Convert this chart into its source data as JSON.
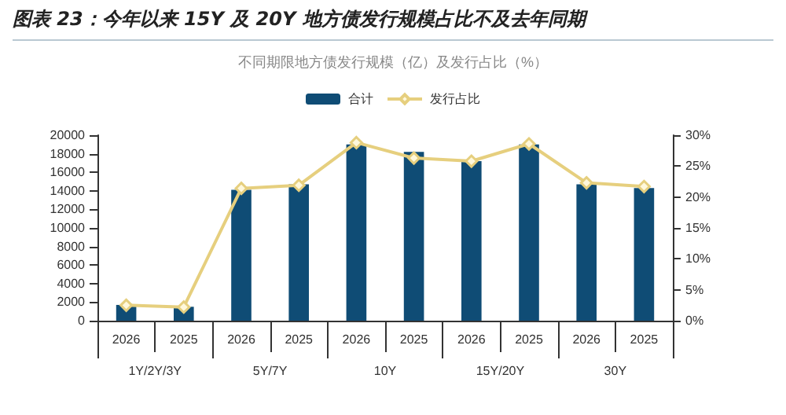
{
  "chart_data": {
    "type": "bar",
    "title": "图表 23：今年以来 15Y 及 20Y 地方债发行规模占比不及去年同期",
    "subtitle": "不同期限地方债发行规模（亿）及发行占比（%）",
    "categories": [
      "2026",
      "2025",
      "2026",
      "2025",
      "2026",
      "2025",
      "2026",
      "2025",
      "2026",
      "2025"
    ],
    "annotations": [
      "1Y/2Y/3Y",
      "5Y/7Y",
      "10Y",
      "15Y/20Y",
      "30Y"
    ],
    "series": [
      {
        "name": "合计",
        "color": "#0f4c75",
        "values": [
          1700,
          1500,
          14100,
          14700,
          19000,
          18200,
          17200,
          19000,
          14700,
          14300
        ]
      },
      {
        "name": "发行占比",
        "type": "line",
        "axis": "y2",
        "color": "#e6cf7e",
        "marker": "diamond",
        "values": [
          2.5,
          2.2,
          21.4,
          21.9,
          28.8,
          26.3,
          25.8,
          28.6,
          22.3,
          21.7
        ]
      }
    ],
    "ylim": [
      0,
      20000
    ],
    "yticks": [
      0,
      2000,
      4000,
      6000,
      8000,
      10000,
      12000,
      14000,
      16000,
      18000,
      20000
    ],
    "y2lim": [
      0,
      30
    ],
    "y2ticks": [
      {
        "value": 0,
        "label": "0%"
      },
      {
        "value": 5,
        "label": "5%"
      },
      {
        "value": 10,
        "label": "10%"
      },
      {
        "value": 15,
        "label": "15%"
      },
      {
        "value": 20,
        "label": "20%"
      },
      {
        "value": 25,
        "label": "25%"
      },
      {
        "value": 30,
        "label": "30%"
      }
    ],
    "legend": "top",
    "grid": false
  }
}
